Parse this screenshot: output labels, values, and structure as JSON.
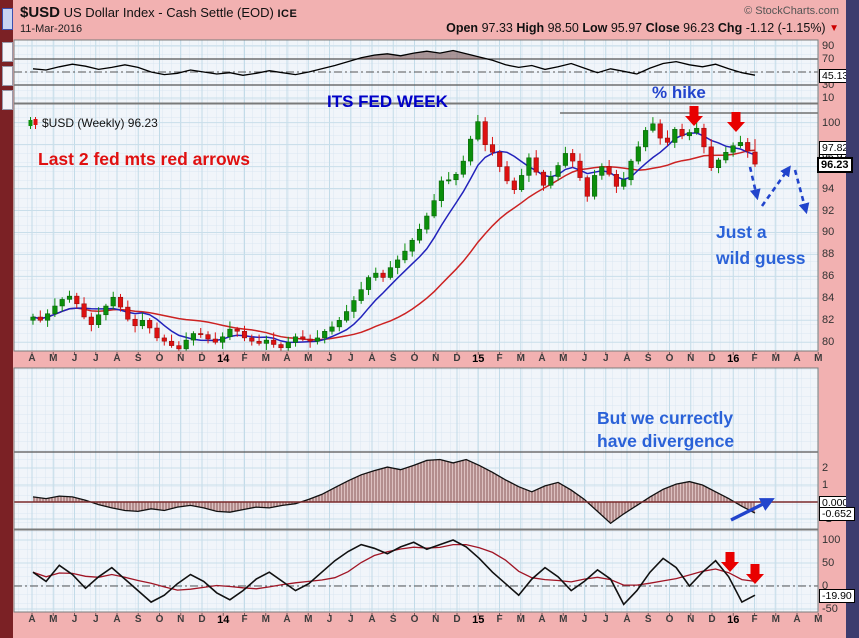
{
  "header": {
    "symbol": "$USD",
    "title": "US Dollar Index - Cash Settle (EOD)",
    "exchange": "ICE",
    "date": "11-Mar-2016",
    "copyright": "© StockCharts.com",
    "quote": {
      "open_label": "Open",
      "open_value": "97.33",
      "high_label": "High",
      "high_value": "98.50",
      "low_label": "Low",
      "low_value": "95.97",
      "close_label": "Close",
      "close_value": "96.23",
      "chg_label": "Chg",
      "chg_value": "-1.12 (-1.15%)",
      "chg_triangle": "▼"
    }
  },
  "price_label": "$USD (Weekly) 96.23",
  "annotations": {
    "fed_week": "ITS FED WEEK",
    "hike": "% hike",
    "last2": "Last 2 fed mts red arrows",
    "guess_line1": "Just a",
    "guess_line2": "wild guess",
    "divergence_line1": "But we currectly",
    "divergence_line2": "have divergence"
  },
  "colors": {
    "frame": "#F2B1B1",
    "plot_bg": "#F1F5FA",
    "fine_grid": "#DAE7F1",
    "month_grid": "#C2DBE8",
    "major_grid": "#C9DEEA",
    "guide": "#555555",
    "frame_line": "#7a7a7a",
    "up": "#0B8F0B",
    "up_stroke": "#065806",
    "down": "#DD1111",
    "down_stroke": "#8a0a0a",
    "ma_fast": "#2222BB",
    "ma_slow": "#CC2222",
    "rsi_line": "#000000",
    "rsi_fill": "rgba(110,70,70,0.55)",
    "hist_fill": "#DCC0C0",
    "hist_hatch": "#8A5A5A",
    "hist_line": "#111111",
    "zero_line": "#7A2A2A",
    "osc_line": "#111111",
    "osc_signal": "#A01525",
    "arrow_red": "#E80000",
    "arrow_blue": "#2244CC",
    "resistance": "#707070"
  },
  "chart_data": {
    "type": "candlestick",
    "timeframe": "weekly",
    "x_labels": [
      "A",
      "M",
      "J",
      "J",
      "A",
      "S",
      "O",
      "N",
      "D",
      "14",
      "F",
      "M",
      "A",
      "M",
      "J",
      "J",
      "A",
      "S",
      "O",
      "N",
      "D",
      "15",
      "F",
      "M",
      "A",
      "M",
      "J",
      "J",
      "A",
      "S",
      "O",
      "N",
      "D",
      "16",
      "F",
      "M",
      "A",
      "M"
    ],
    "bold_x_labels": [
      "14",
      "15",
      "16"
    ],
    "panels": [
      {
        "id": "rsi",
        "ticks": [
          90,
          70,
          30,
          10
        ],
        "overbought": 70,
        "oversold": 30,
        "midline": 50,
        "current_value": "45.13",
        "values": [
          55,
          53,
          58,
          62,
          59,
          54,
          57,
          61,
          57,
          50,
          46,
          48,
          53,
          50,
          47,
          49,
          45,
          48,
          52,
          49,
          46,
          50,
          55,
          60,
          66,
          72,
          76,
          78,
          75,
          79,
          82,
          79,
          83,
          78,
          73,
          68,
          61,
          57,
          60,
          54,
          58,
          63,
          56,
          49,
          55,
          51,
          47,
          56,
          63,
          66,
          61,
          58,
          62,
          55,
          49,
          45.13
        ]
      },
      {
        "id": "price",
        "ticks": [
          100,
          94,
          92,
          90,
          88,
          86,
          84,
          82,
          80
        ],
        "ylim": [
          79.2,
          101.7
        ],
        "closes": [
          82.3,
          82.0,
          82.6,
          83.3,
          83.9,
          84.2,
          83.5,
          82.3,
          81.6,
          82.5,
          83.3,
          84.1,
          83.2,
          82.1,
          81.5,
          82.0,
          81.3,
          80.4,
          80.1,
          79.7,
          79.4,
          80.2,
          80.8,
          80.7,
          80.3,
          80.0,
          80.5,
          81.2,
          81.0,
          80.4,
          80.1,
          79.9,
          80.2,
          79.8,
          79.5,
          80.0,
          80.5,
          80.3,
          80.1,
          80.4,
          81.0,
          81.4,
          82.0,
          82.8,
          83.8,
          84.8,
          85.9,
          86.3,
          85.9,
          86.8,
          87.5,
          88.3,
          89.3,
          90.3,
          91.5,
          92.9,
          94.7,
          94.8,
          95.3,
          96.5,
          98.5,
          100.1,
          98.0,
          97.3,
          96.0,
          94.7,
          93.9,
          95.2,
          96.8,
          95.5,
          94.3,
          95.1,
          96.1,
          97.2,
          96.5,
          95.0,
          93.3,
          95.2,
          96.0,
          95.3,
          94.2,
          94.8,
          96.5,
          97.8,
          99.3,
          99.9,
          98.6,
          98.2,
          99.4,
          98.8,
          99.1,
          99.5,
          97.8,
          95.9,
          96.6,
          97.3,
          97.9,
          98.2,
          97.4,
          96.2
        ],
        "last_week_ohlc": [
          97.33,
          98.5,
          95.97,
          96.23
        ],
        "wick_pattern_high": [
          0.3,
          0.6,
          0.4,
          0.7,
          0.2,
          0.5
        ],
        "wick_pattern_low": [
          0.4,
          0.2,
          0.6,
          0.3,
          0.5,
          0.3
        ],
        "ma_fast_period": 7,
        "ma_slow_period": 22,
        "current_values": {
          "ma_fast": "97.82",
          "ma_slow": "96.97",
          "close": "96.23"
        }
      },
      {
        "id": "macd_hist",
        "ticks": [
          2,
          1,
          -1
        ],
        "current_values": {
          "line": "0.000",
          "hist": "-0.652"
        },
        "values": [
          0.3,
          0.2,
          0.35,
          0.3,
          0.1,
          -0.15,
          -0.35,
          -0.5,
          -0.55,
          -0.4,
          -0.5,
          -0.3,
          -0.2,
          -0.35,
          -0.55,
          -0.6,
          -0.45,
          -0.3,
          -0.35,
          -0.2,
          -0.1,
          0.15,
          0.45,
          0.85,
          1.25,
          1.6,
          1.85,
          2.05,
          1.9,
          2.15,
          2.45,
          2.5,
          2.3,
          2.5,
          2.15,
          1.75,
          1.3,
          0.9,
          0.6,
          0.95,
          1.15,
          0.7,
          0.15,
          -0.55,
          -1.25,
          -0.7,
          -0.2,
          0.3,
          0.75,
          1.05,
          1.2,
          1.0,
          0.6,
          0.2,
          -0.25,
          -0.652
        ]
      },
      {
        "id": "oscillator",
        "ticks": [
          100,
          50,
          0,
          -50
        ],
        "current_value": "-19.90",
        "values": [
          30,
          10,
          45,
          25,
          -5,
          20,
          40,
          15,
          -10,
          -35,
          -20,
          5,
          25,
          10,
          -15,
          -30,
          -10,
          15,
          30,
          10,
          -10,
          5,
          30,
          55,
          75,
          90,
          82,
          70,
          85,
          95,
          80,
          90,
          100,
          85,
          60,
          30,
          5,
          -20,
          15,
          40,
          20,
          -10,
          10,
          35,
          15,
          -40,
          -10,
          30,
          60,
          40,
          0,
          30,
          55,
          20,
          -35,
          -19.9
        ]
      }
    ]
  },
  "drawings": {
    "red_arrows": [
      [
        694,
        106
      ],
      [
        736,
        112
      ],
      [
        730,
        552
      ],
      [
        755,
        564
      ]
    ],
    "dashed_arrows": [
      [
        750,
        167,
        757,
        197
      ],
      [
        762,
        206,
        789,
        168
      ],
      [
        795,
        170,
        806,
        211
      ]
    ],
    "solid_arrow": [
      731,
      520,
      771,
      500
    ],
    "solid_arrow2": [
      732,
      519,
      770,
      501
    ],
    "resistance_line": [
      560,
      113,
      818,
      113
    ],
    "threshold_line_y": 452
  }
}
